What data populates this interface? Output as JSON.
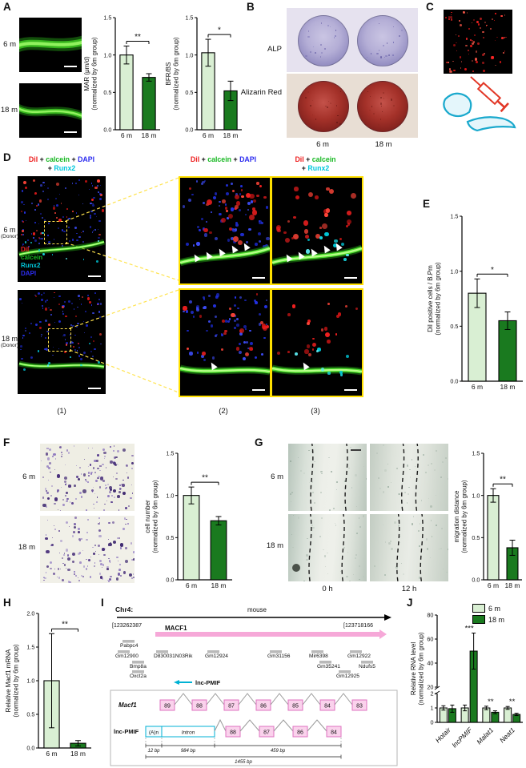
{
  "colors": {
    "light_green": "#d9efd3",
    "dark_green": "#1a7a1f",
    "red": "#ee2222",
    "green": "#17b822",
    "blue": "#2d2df0",
    "cyan": "#00c8dc",
    "black": "#111111",
    "macf1_pink": "#ef6fc0",
    "exon_fill": "#fad2ec",
    "exon_stroke": "#df73c0",
    "lnc_cyan": "#00b2d4",
    "gene_gray": "#9b9b9b",
    "yellow": "#ffe000"
  },
  "panel_a": {
    "label": "A",
    "row_labels": [
      "6 m",
      "18 m"
    ]
  },
  "panel_b": {
    "label": "B",
    "row_labels": [
      "ALP",
      "Alizarin Red"
    ],
    "col_labels": [
      "6 m",
      "18 m"
    ]
  },
  "panel_c": {
    "label": "C"
  },
  "panel_d": {
    "label": "D",
    "headers": [
      {
        "l1": [
          [
            "DiI",
            "red"
          ],
          [
            " + ",
            "black"
          ],
          [
            "calcein",
            "green"
          ],
          [
            " + ",
            "black"
          ],
          [
            "DAPI",
            "blue"
          ]
        ],
        "l2": [
          [
            "+ ",
            "black"
          ],
          [
            "Runx2",
            "cyan"
          ]
        ]
      },
      {
        "l1": [
          [
            "DiI",
            "red"
          ],
          [
            " + ",
            "black"
          ],
          [
            "calcein",
            "green"
          ],
          [
            " + ",
            "black"
          ],
          [
            "DAPI",
            "blue"
          ]
        ],
        "l2": []
      },
      {
        "l1": [
          [
            "DiI",
            "red"
          ],
          [
            " + ",
            "black"
          ],
          [
            "calcein",
            "green"
          ]
        ],
        "l2": [
          [
            "+ ",
            "black"
          ],
          [
            "Runx2",
            "cyan"
          ]
        ]
      }
    ],
    "legend": [
      [
        "DiI",
        "red"
      ],
      [
        "calcein",
        "green"
      ],
      [
        "Runx2",
        "cyan"
      ],
      [
        "DAPI",
        "blue"
      ]
    ],
    "row_labels": [
      [
        "6 m",
        "(Donor)"
      ],
      [
        "18 m",
        "(Donor)"
      ]
    ],
    "col_numbers": [
      "(1)",
      "(2)",
      "(3)"
    ]
  },
  "panel_e": {
    "label": "E"
  },
  "panel_f": {
    "label": "F",
    "row_labels": [
      "6 m",
      "18 m"
    ]
  },
  "panel_g": {
    "label": "G",
    "row_labels": [
      "6 m",
      "18 m"
    ],
    "col_labels": [
      "0 h",
      "12 h"
    ]
  },
  "panel_h": {
    "label": "H"
  },
  "panel_i": {
    "label": "I",
    "chr": "Chr4:",
    "coord_start": "[123262387",
    "coord_end": "[123718166",
    "species": "mouse",
    "macf1_gene": "MACF1",
    "lnc_gene": "lnc-PMIF",
    "genes": [
      "Pabpc4",
      "Gm12900",
      "D830031N03Rik",
      "Gm12924",
      "Gm31156",
      "Mir6398",
      "Gm12922",
      "Bmp8a",
      "Oxct2a",
      "Gm35241",
      "Ndufs5",
      "Gm12925"
    ],
    "macf1_label": "Macf1",
    "macf1_exons": [
      "89",
      "88",
      "87",
      "86",
      "85",
      "84",
      "83"
    ],
    "lnc_label": "lnc-PMIF",
    "lnc_polyA": "(A)n",
    "lnc_intron": "Intron",
    "lnc_exons": [
      "88",
      "87",
      "86",
      "84"
    ],
    "scales": [
      "12 bp",
      "984 bp",
      "459 bp",
      "1455 bp"
    ]
  },
  "panel_j": {
    "label": "J",
    "legend": [
      "6 m",
      "18 m"
    ]
  },
  "chart_data": [
    {
      "id": "a_mar",
      "type": "bar",
      "categories": [
        "6 m",
        "18 m"
      ],
      "values": [
        1.0,
        0.7
      ],
      "errors": [
        0.12,
        0.05
      ],
      "ylabel": "MAR (μm/d)",
      "ylabel2": "(normalized by 6m group)",
      "ylim": [
        0,
        1.5
      ],
      "yticks": [
        "0.0",
        "0.5",
        "1.0",
        "1.5"
      ],
      "sig": "**"
    },
    {
      "id": "a_bfr",
      "type": "bar",
      "categories": [
        "6 m",
        "18 m"
      ],
      "values": [
        1.03,
        0.52
      ],
      "errors": [
        0.18,
        0.13
      ],
      "ylabel": "BFR/BS",
      "ylabel2": "(normalized by 6m group)",
      "ylim": [
        0,
        1.5
      ],
      "yticks": [
        "0.0",
        "0.5",
        "1.0",
        "1.5"
      ],
      "sig": "*"
    },
    {
      "id": "e_dii",
      "type": "bar",
      "categories": [
        "6 m",
        "18 m"
      ],
      "values": [
        0.8,
        0.55
      ],
      "errors": [
        0.13,
        0.08
      ],
      "ylabel": "DiI positive cells / B.Pm",
      "ylabel2": "(normalized by 6m group)",
      "ylim": [
        0,
        1.5
      ],
      "yticks": [
        "0.0",
        "0.5",
        "1.0",
        "1.5"
      ],
      "sig": "*"
    },
    {
      "id": "f_cell",
      "type": "bar",
      "categories": [
        "6 m",
        "18 m"
      ],
      "values": [
        1.0,
        0.7
      ],
      "errors": [
        0.1,
        0.05
      ],
      "ylabel": "cell number",
      "ylabel2": "(normalized by 6m group)",
      "ylim": [
        0,
        1.5
      ],
      "yticks": [
        "0.0",
        "0.5",
        "1.0",
        "1.5"
      ],
      "sig": "**"
    },
    {
      "id": "g_mig",
      "type": "bar",
      "categories": [
        "6 m",
        "18 m"
      ],
      "values": [
        1.0,
        0.38
      ],
      "errors": [
        0.08,
        0.09
      ],
      "ylabel": "migration distance",
      "ylabel2": "(normalized by 6m group)",
      "ylim": [
        0,
        1.5
      ],
      "yticks": [
        "0.0",
        "0.5",
        "1.0",
        "1.5"
      ],
      "sig": "**"
    },
    {
      "id": "h_macf1",
      "type": "bar",
      "categories": [
        "6 m",
        "18 m"
      ],
      "values": [
        1.0,
        0.07
      ],
      "errors": [
        0.7,
        0.04
      ],
      "ylabel": "Relative Macf1 mRNA",
      "ylabel2": "(normalized by 6m group)",
      "ylim": [
        0,
        2.0
      ],
      "yticks": [
        "0.0",
        "0.5",
        "1.0",
        "1.5",
        "2.0"
      ],
      "sig": "**"
    },
    {
      "id": "j_rna",
      "type": "grouped_bar",
      "broken_axis": true,
      "categories": [
        "Hotair",
        "lncPMIF",
        "Malat1",
        "Neat1"
      ],
      "series": [
        {
          "name": "6 m",
          "values": [
            1.0,
            1.0,
            1.0,
            1.0
          ],
          "errors": [
            0.15,
            0.2,
            0.12,
            0.1
          ]
        },
        {
          "name": "18 m",
          "values": [
            0.95,
            50,
            0.7,
            0.55
          ],
          "errors": [
            0.25,
            15,
            0.1,
            0.08
          ]
        }
      ],
      "sig": [
        "",
        "***",
        "**",
        "**"
      ],
      "ylabel": "Relative RNA level",
      "ylabel2": "(normalized by 6m group)",
      "yticks_low": [
        "0",
        "1",
        "2"
      ],
      "yticks_high": [
        "20",
        "40",
        "60",
        "80"
      ]
    }
  ]
}
